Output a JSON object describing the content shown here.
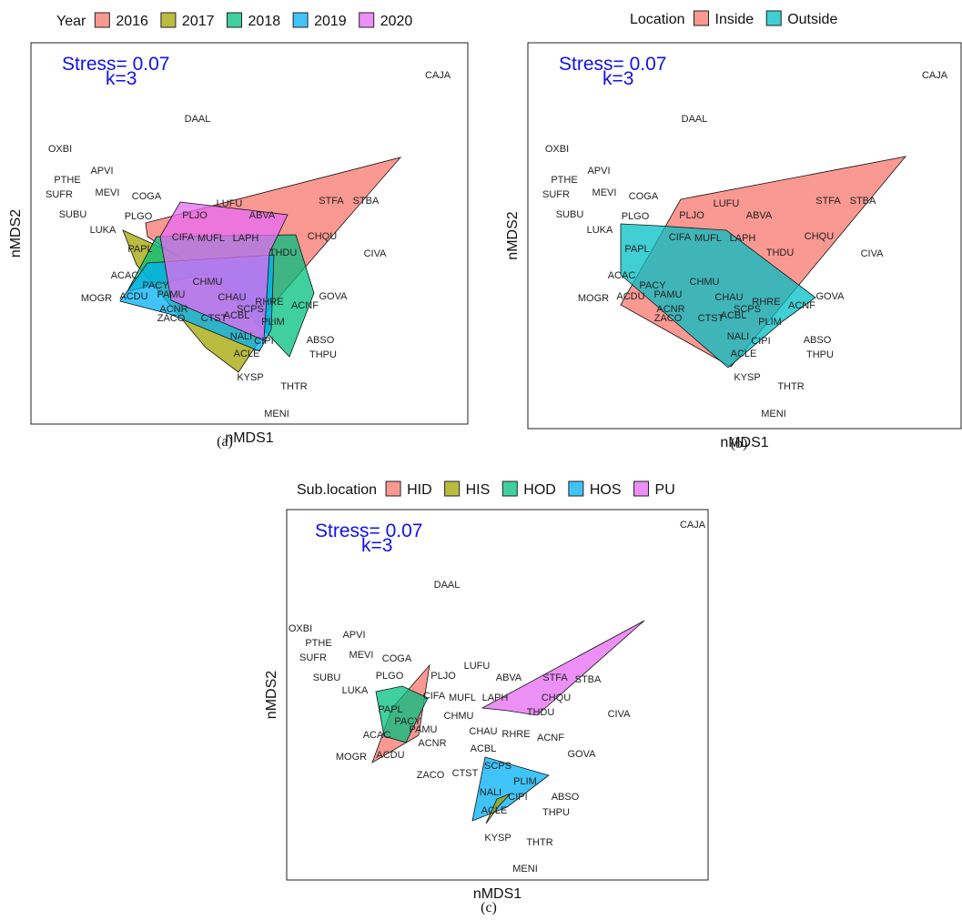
{
  "stress_text": "Stress= 0.07",
  "k_text": "k=3",
  "x_axis_label": "nMDS1",
  "y_axis_label": "nMDS2",
  "species_names": [
    "CAJA",
    "DAAL",
    "OXBI",
    "APVI",
    "PTHE",
    "MEVI",
    "SUFR",
    "COGA",
    "SUBU",
    "PLGO",
    "LUKA",
    "LUFU",
    "PLJO",
    "ABVA",
    "STFA",
    "STBA",
    "CIFA",
    "MUFL",
    "LAPH",
    "CHQU",
    "PAPL",
    "THDU",
    "CIVA",
    "ACAC",
    "PACY",
    "PAMU",
    "CHMU",
    "CHAU",
    "RHRE",
    "ACNF",
    "ACNR",
    "ACBL",
    "GOVA",
    "MOGR",
    "ACDU",
    "SCPS",
    "ZACO",
    "CTST",
    "PLIM",
    "NALI",
    "CIPI",
    "ABSO",
    "ACLE",
    "THPU",
    "KYSP",
    "THTR",
    "MENI"
  ],
  "chart_data": [
    {
      "id": "a",
      "caption": "(a)",
      "type": "scatter",
      "legend_title": "Year",
      "legend_placement": "top",
      "groups": [
        {
          "name": "2016",
          "color": "#F8766D"
        },
        {
          "name": "2017",
          "color": "#A3A500"
        },
        {
          "name": "2018",
          "color": "#00BF7D"
        },
        {
          "name": "2019",
          "color": "#00B0F6"
        },
        {
          "name": "2020",
          "color": "#E76BF3"
        }
      ]
    },
    {
      "id": "b",
      "caption": "(b)",
      "type": "scatter",
      "legend_title": "Location",
      "legend_placement": "top",
      "groups": [
        {
          "name": "Inside",
          "color": "#F8766D"
        },
        {
          "name": "Outside",
          "color": "#00BFC4"
        }
      ]
    },
    {
      "id": "c",
      "caption": "(c)",
      "type": "scatter",
      "legend_title": "Sub.location",
      "legend_placement": "top",
      "groups": [
        {
          "name": "HID",
          "color": "#F8766D"
        },
        {
          "name": "HIS",
          "color": "#A3A500"
        },
        {
          "name": "HOD",
          "color": "#00BF7D"
        },
        {
          "name": "HOS",
          "color": "#00B0F6"
        },
        {
          "name": "PU",
          "color": "#E76BF3"
        }
      ]
    }
  ]
}
